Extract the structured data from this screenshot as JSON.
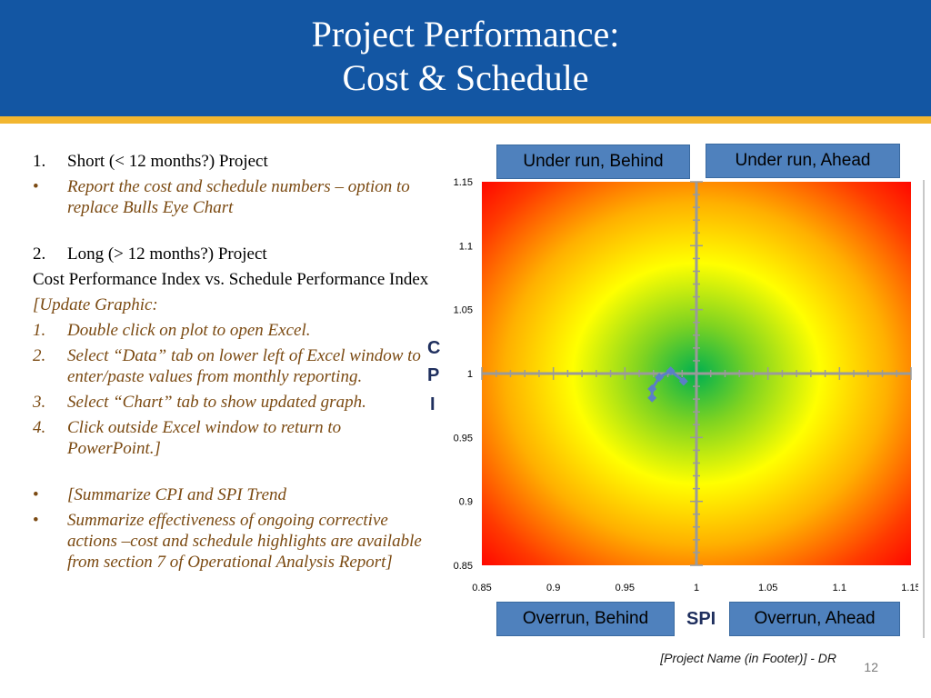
{
  "slide": {
    "title_line1": "Project Performance:",
    "title_line2": "Cost & Schedule",
    "footer": "[Project Name (in Footer)] - DR",
    "page_number": "12"
  },
  "left_text": {
    "item1_marker": "1.",
    "item1_text": "Short (< 12 months?) Project",
    "bullet1_marker": "•",
    "bullet1_text": "Report the cost and schedule numbers – option to replace Bulls Eye Chart",
    "item2_marker": "2.",
    "item2_text": "Long (> 12 months?) Project",
    "cost_line": "Cost Performance Index vs. Schedule Performance Index",
    "update_heading": "[Update Graphic:",
    "steps": [
      {
        "marker": "1.",
        "text": "Double click on plot to open Excel."
      },
      {
        "marker": "2.",
        "text": "Select “Data” tab on lower left of Excel window to enter/paste values from monthly reporting."
      },
      {
        "marker": "3.",
        "text": "Select “Chart” tab to show updated graph."
      },
      {
        "marker": "4.",
        "text": "Click outside Excel window to return to PowerPoint.]"
      }
    ],
    "bullet2_marker": "•",
    "bullet2_text": "[Summarize CPI and SPI Trend",
    "bullet3_marker": "•",
    "bullet3_text": "Summarize effectiveness of ongoing corrective actions –cost and schedule highlights are available from section 7 of Operational Analysis Report]"
  },
  "quadrants": {
    "top_left": "Under run, Behind",
    "top_right": "Under run, Ahead",
    "bottom_left": "Overrun, Behind",
    "bottom_right": "Overrun, Ahead"
  },
  "chart_data": {
    "type": "scatter",
    "xlabel": "SPI",
    "ylabel_letters": [
      "C",
      "P",
      "I"
    ],
    "xlim": [
      0.85,
      1.15
    ],
    "ylim": [
      0.85,
      1.15
    ],
    "x_ticks": [
      "0.85",
      "0.9",
      "0.95",
      "1",
      "1.05",
      "1.1",
      "1.15"
    ],
    "y_ticks": [
      "1.15",
      "1.1",
      "1.05",
      "1",
      "0.95",
      "0.9",
      "0.85"
    ],
    "background": "radial gradient bulls-eye centered at (1, 1): green center to yellow to red edges",
    "colors": {
      "center": "#00b050",
      "middle": "#ffff00",
      "edge": "#ff0000",
      "series": "#5b7fc7",
      "axis": "#9a9a9a"
    },
    "series": [
      {
        "x": [
          0.969,
          0.969,
          0.974,
          0.982,
          0.991
        ],
        "y": [
          0.981,
          0.988,
          0.997,
          1.002,
          0.994
        ]
      }
    ]
  }
}
